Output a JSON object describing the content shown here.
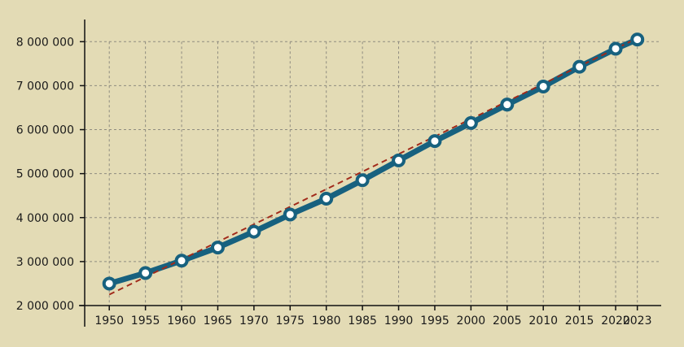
{
  "chart_data": {
    "type": "line",
    "title": "",
    "xlabel": "",
    "ylabel": "",
    "x": [
      "1950",
      "1955",
      "1960",
      "1965",
      "1970",
      "1975",
      "1980",
      "1985",
      "1990",
      "1995",
      "2000",
      "2005",
      "2010",
      "2015",
      "2020",
      "2023"
    ],
    "series": [
      {
        "values": [
          2500000,
          2740000,
          3020000,
          3320000,
          3680000,
          4070000,
          4430000,
          4850000,
          5300000,
          5740000,
          6150000,
          6570000,
          6980000,
          7430000,
          7840000,
          8050000
        ]
      }
    ],
    "trendline": {
      "from": [
        1950,
        2250000
      ],
      "to": [
        2023,
        8080000
      ]
    },
    "xlim": [
      1946.6,
      2026.3
    ],
    "ylim": [
      2000000,
      8800000
    ],
    "yticks": [
      2000000,
      3000000,
      4000000,
      5000000,
      6000000,
      7000000,
      8000000
    ],
    "ytick_labels": [
      "2 000 000",
      "3 000 000",
      "4 000 000",
      "5 000 000",
      "6 000 000",
      "7 000 000",
      "8 000 000"
    ],
    "grid": true,
    "colors": {
      "background": "#e3dbb5",
      "series": "#17617f",
      "trend": "#a12a1a",
      "marker_fill": "#ffffff",
      "grid": "#8f8c80"
    }
  }
}
